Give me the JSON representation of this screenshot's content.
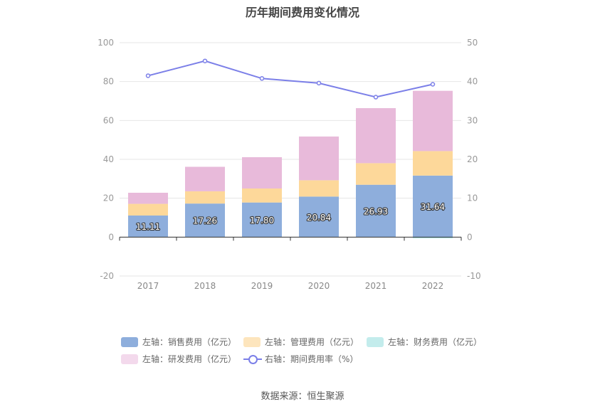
{
  "title": "历年期间费用变化情况",
  "source": "数据来源：恒生聚源",
  "chart_data": {
    "type": "bar",
    "stacked": true,
    "categories": [
      "2017",
      "2018",
      "2019",
      "2020",
      "2021",
      "2022"
    ],
    "y_left": {
      "min": -20,
      "max": 100,
      "ticks": [
        -20,
        0,
        20,
        40,
        60,
        80,
        100
      ]
    },
    "y_right": {
      "min": -10,
      "max": 50,
      "ticks": [
        -10,
        0,
        10,
        20,
        30,
        40,
        50
      ]
    },
    "grid": true,
    "legend_position": "bottom",
    "series": [
      {
        "name": "左轴：销售费用（亿元）",
        "axis": "left",
        "color": "#8eaedc",
        "values": [
          11.11,
          17.26,
          17.8,
          20.84,
          26.93,
          31.64
        ],
        "labels": [
          "11.11",
          "17.26",
          "17.80",
          "20.84",
          "26.93",
          "31.64"
        ]
      },
      {
        "name": "左轴：管理费用（亿元）",
        "axis": "left",
        "color": "#fdd89a",
        "values": [
          6.0,
          6.3,
          7.2,
          8.4,
          11.1,
          12.6
        ]
      },
      {
        "name": "左轴：财务费用（亿元）",
        "axis": "left",
        "color": "#a9e3e3",
        "values": [
          0.0,
          0.0,
          0.0,
          0.0,
          0.0,
          -0.6
        ]
      },
      {
        "name": "左轴：研发费用（亿元）",
        "axis": "left",
        "color": "#e8bada",
        "values": [
          5.7,
          12.6,
          16.1,
          22.5,
          28.3,
          31.0
        ]
      },
      {
        "name": "右轴：期间费用率（%）",
        "axis": "right",
        "type": "line",
        "color": "#7b7fe8",
        "values": [
          41.5,
          45.3,
          40.8,
          39.6,
          36.0,
          39.3
        ]
      }
    ]
  },
  "legend": [
    {
      "label": "左轴：销售费用（亿元）",
      "color": "#8eaedc",
      "kind": "swatch"
    },
    {
      "label": "左轴：管理费用（亿元）",
      "color": "#fde5bd",
      "kind": "swatch"
    },
    {
      "label": "左轴：财务费用（亿元）",
      "color": "#c3ecec",
      "kind": "swatch"
    },
    {
      "label": "左轴：研发费用（亿元）",
      "color": "#f3d9ec",
      "kind": "swatch"
    },
    {
      "label": "右轴：期间费用率（%）",
      "color": "#7b7fe8",
      "kind": "line"
    }
  ]
}
